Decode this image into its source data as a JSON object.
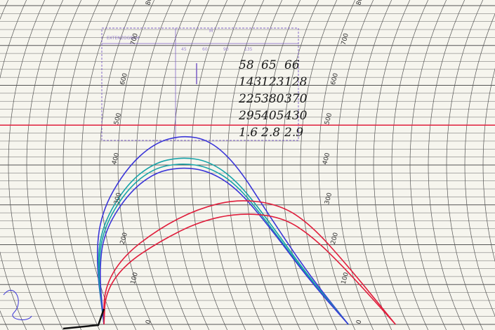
{
  "chart_data": {
    "type": "line",
    "title": "",
    "xlabel": "",
    "ylabel": "",
    "ylim": [
      0,
      800
    ],
    "grid": true,
    "reference_line": {
      "y": 500,
      "color": "#e01e3c"
    },
    "tick_labels": [
      "0",
      "100",
      "200",
      "300",
      "400",
      "500",
      "600",
      "700",
      "800"
    ],
    "series": [
      {
        "color": "#3a35d8",
        "peak_y": 475,
        "points": [
          [
            0,
            0
          ],
          [
            5,
            160
          ],
          [
            10,
            280
          ],
          [
            20,
            390
          ],
          [
            30,
            455
          ],
          [
            40,
            475
          ],
          [
            50,
            462
          ],
          [
            60,
            400
          ],
          [
            70,
            280
          ],
          [
            80,
            130
          ],
          [
            88,
            0
          ]
        ]
      },
      {
        "color": "#17a3a8",
        "peak_y": 420,
        "points": [
          [
            0,
            0
          ],
          [
            5,
            150
          ],
          [
            10,
            250
          ],
          [
            20,
            350
          ],
          [
            30,
            405
          ],
          [
            40,
            420
          ],
          [
            50,
            410
          ],
          [
            60,
            360
          ],
          [
            70,
            260
          ],
          [
            80,
            120
          ],
          [
            88,
            0
          ]
        ]
      },
      {
        "color": "#17a3a8",
        "peak_y": 405,
        "points": [
          [
            0,
            0
          ],
          [
            5,
            140
          ],
          [
            10,
            240
          ],
          [
            20,
            338
          ],
          [
            30,
            392
          ],
          [
            40,
            405
          ],
          [
            50,
            395
          ],
          [
            60,
            350
          ],
          [
            70,
            250
          ],
          [
            80,
            115
          ],
          [
            88,
            0
          ]
        ]
      },
      {
        "color": "#3a35d8",
        "peak_y": 395,
        "points": [
          [
            0,
            0
          ],
          [
            5,
            130
          ],
          [
            10,
            230
          ],
          [
            20,
            325
          ],
          [
            30,
            380
          ],
          [
            40,
            395
          ],
          [
            50,
            385
          ],
          [
            60,
            340
          ],
          [
            70,
            245
          ],
          [
            80,
            110
          ],
          [
            88,
            0
          ]
        ]
      },
      {
        "color": "#e01e3c",
        "peak_y": 315,
        "points": [
          [
            0,
            0
          ],
          [
            5,
            90
          ],
          [
            15,
            170
          ],
          [
            30,
            240
          ],
          [
            45,
            290
          ],
          [
            60,
            315
          ],
          [
            75,
            300
          ],
          [
            85,
            250
          ],
          [
            95,
            150
          ],
          [
            105,
            0
          ]
        ]
      },
      {
        "color": "#e01e3c",
        "peak_y": 280,
        "points": [
          [
            0,
            0
          ],
          [
            5,
            80
          ],
          [
            15,
            150
          ],
          [
            30,
            210
          ],
          [
            45,
            258
          ],
          [
            60,
            280
          ],
          [
            75,
            270
          ],
          [
            85,
            220
          ],
          [
            95,
            130
          ],
          [
            105,
            0
          ]
        ]
      }
    ]
  },
  "handwritten_table": [
    [
      "58",
      "65",
      "66"
    ],
    [
      "143",
      "123",
      "128"
    ],
    [
      "225",
      "380",
      "370"
    ],
    [
      "295",
      "405",
      "430"
    ],
    [
      "1.6",
      "2.8",
      "2.9"
    ]
  ],
  "stamp": {
    "title": "EXTENZOGRAM",
    "columns": [
      "45",
      "60",
      "90",
      "135"
    ],
    "letter": "M"
  },
  "colors": {
    "grid": "#555555",
    "reference": "#e01e3c",
    "blue": "#3a35d8",
    "teal": "#17a3a8",
    "red": "#e01e3c",
    "stamp": "#7a5cc7"
  }
}
